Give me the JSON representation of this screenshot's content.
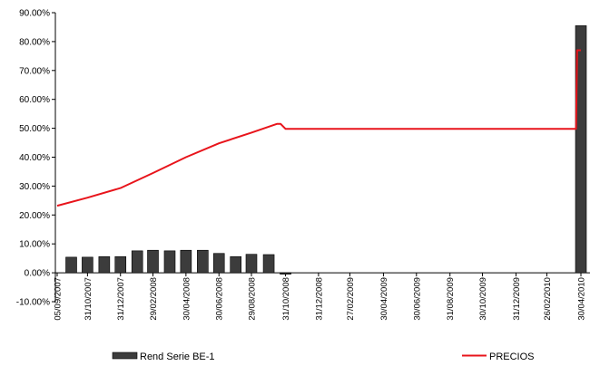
{
  "chart_data": {
    "type": "bar+line",
    "yaxis": {
      "min": -10,
      "max": 90,
      "step": 10,
      "tick_labels": [
        "-10.00%",
        "0.00%",
        "10.00%",
        "20.00%",
        "30.00%",
        "40.00%",
        "50.00%",
        "60.00%",
        "70.00%",
        "80.00%",
        "90.00%"
      ]
    },
    "xaxis": {
      "tick_labels": [
        "05/09/2007",
        "31/10/2007",
        "31/12/2007",
        "29/02/2008",
        "30/04/2008",
        "30/06/2008",
        "29/08/2008",
        "31/10/2008",
        "31/12/2008",
        "27/02/2009",
        "30/04/2009",
        "30/06/2009",
        "31/08/2009",
        "30/10/2009",
        "31/12/2009",
        "26/02/2010",
        "30/04/2010"
      ]
    },
    "series": [
      {
        "name": "Rend Serie BE-1",
        "type": "bar",
        "color": "#3c3c3c",
        "points": [
          {
            "x": "2007-10-01",
            "y": 5.4
          },
          {
            "x": "2007-10-31",
            "y": 5.4
          },
          {
            "x": "2007-12-01",
            "y": 5.6
          },
          {
            "x": "2007-12-31",
            "y": 5.6
          },
          {
            "x": "2008-01-31",
            "y": 7.6
          },
          {
            "x": "2008-02-29",
            "y": 7.8
          },
          {
            "x": "2008-03-31",
            "y": 7.6
          },
          {
            "x": "2008-04-30",
            "y": 7.8
          },
          {
            "x": "2008-05-31",
            "y": 7.8
          },
          {
            "x": "2008-06-30",
            "y": 6.7
          },
          {
            "x": "2008-07-31",
            "y": 5.6
          },
          {
            "x": "2008-08-29",
            "y": 6.4
          },
          {
            "x": "2008-09-30",
            "y": 6.3
          },
          {
            "x": "2008-10-31",
            "y": -0.5
          },
          {
            "x": "2010-04-30",
            "y": 85.5
          }
        ]
      },
      {
        "name": "PRECIOS",
        "type": "line",
        "color": "#e8141b",
        "points": [
          {
            "x": "2007-09-05",
            "y": 23.2
          },
          {
            "x": "2007-10-31",
            "y": 26.0
          },
          {
            "x": "2007-12-31",
            "y": 29.3
          },
          {
            "x": "2008-02-29",
            "y": 34.5
          },
          {
            "x": "2008-04-30",
            "y": 40.0
          },
          {
            "x": "2008-06-30",
            "y": 44.8
          },
          {
            "x": "2008-08-29",
            "y": 48.5
          },
          {
            "x": "2008-10-15",
            "y": 51.5
          },
          {
            "x": "2008-10-22",
            "y": 51.5
          },
          {
            "x": "2008-10-31",
            "y": 49.8
          },
          {
            "x": "2010-04-21",
            "y": 49.8
          },
          {
            "x": "2010-04-23",
            "y": 77.0
          },
          {
            "x": "2010-04-30",
            "y": 77.0
          }
        ]
      }
    ],
    "legend": [
      {
        "label": "Rend Serie BE-1",
        "symbol": "bar",
        "color": "#3c3c3c"
      },
      {
        "label": "PRECIOS",
        "symbol": "line",
        "color": "#e8141b"
      }
    ],
    "legend_position": "bottom",
    "grid": false
  }
}
